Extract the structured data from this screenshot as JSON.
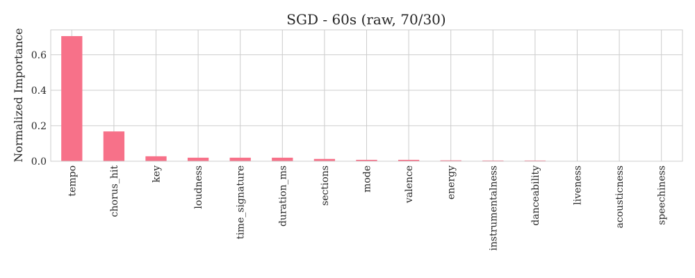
{
  "chart_data": {
    "type": "bar",
    "title": "SGD - 60s (raw, 70/30)",
    "xlabel": "",
    "ylabel": "Normalized Importance",
    "categories": [
      "tempo",
      "chorus_hit",
      "key",
      "loudness",
      "time_signature",
      "duration_ms",
      "sections",
      "mode",
      "valence",
      "energy",
      "instrumentalness",
      "danceability",
      "liveness",
      "acousticness",
      "speechiness"
    ],
    "values": [
      0.705,
      0.168,
      0.028,
      0.02,
      0.02,
      0.02,
      0.013,
      0.008,
      0.008,
      0.005,
      0.004,
      0.004,
      0.001,
      0.001,
      0.001
    ],
    "yticks": [
      "0.0",
      "0.2",
      "0.4",
      "0.6"
    ],
    "ylim": [
      0,
      0.74
    ],
    "grid": true,
    "color": "#f77189"
  }
}
